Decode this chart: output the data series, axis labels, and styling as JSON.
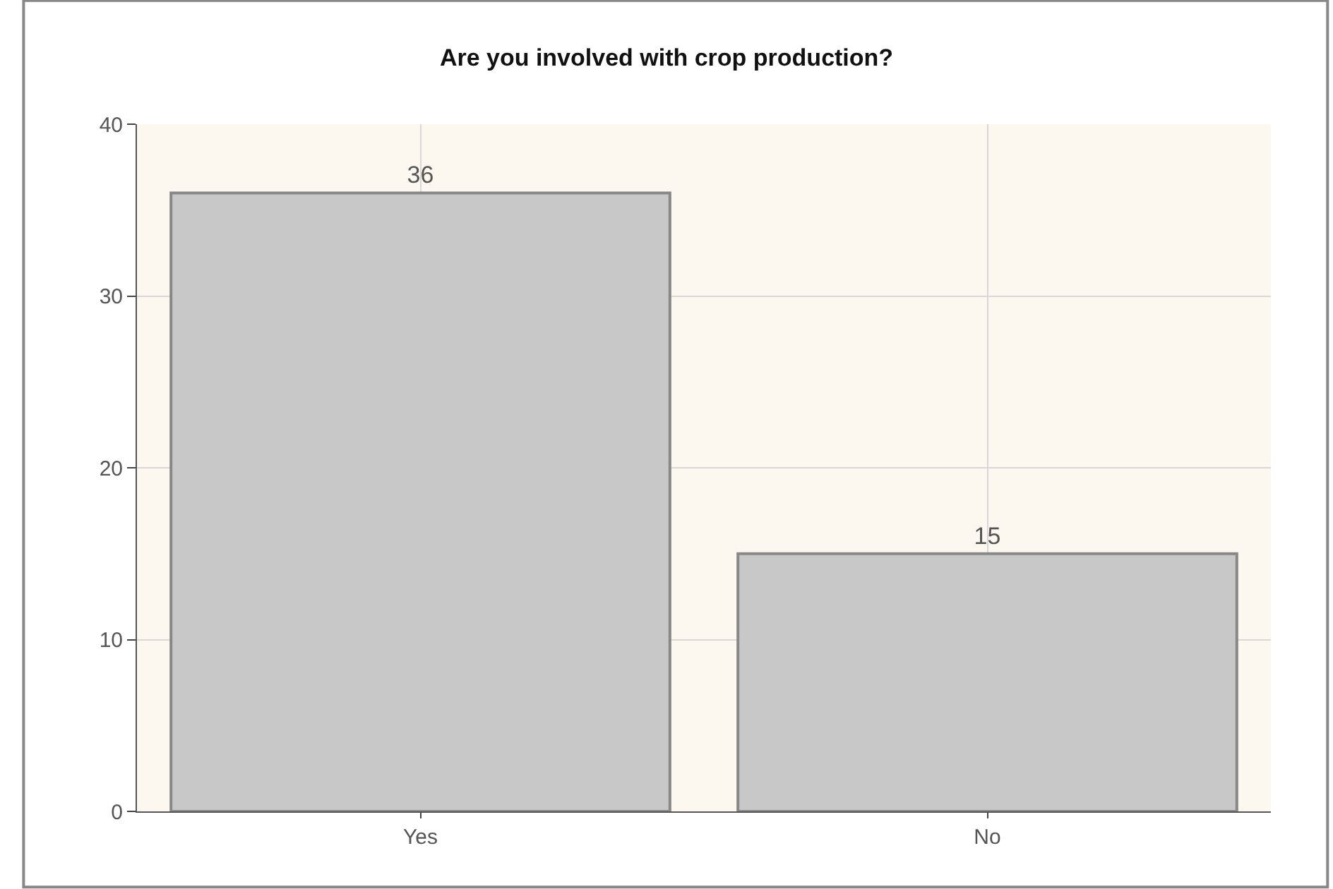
{
  "chart_data": {
    "type": "bar",
    "title": "Are you involved with crop production?",
    "categories": [
      "Yes",
      "No"
    ],
    "values": [
      36,
      15
    ],
    "color": "#c8c8c8",
    "ylim": [
      0,
      40
    ],
    "yticks": [
      0,
      10,
      20,
      30,
      40
    ],
    "grid": true,
    "data_labels": true
  }
}
